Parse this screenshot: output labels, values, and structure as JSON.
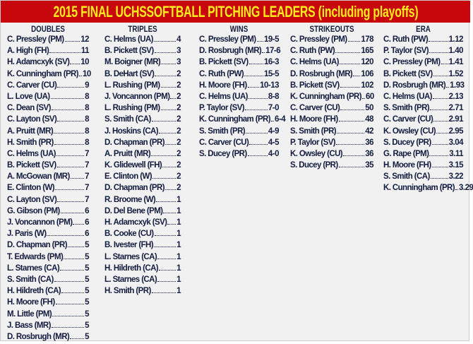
{
  "title": "2015 FINAL UCHSSOFTBALL PITCHING LEADERS (including playoffs)",
  "colors": {
    "banner": "#c8070c",
    "title_text": "#ffec1a",
    "body_text": "#131c3f",
    "background": "#f1f1f1"
  },
  "columns": [
    {
      "header": "DOUBLES",
      "rows": [
        [
          "C. Pressley (PM)",
          "12"
        ],
        [
          "A. High (FH)",
          "11"
        ],
        [
          "H. Adamcxyk (SV)",
          "10"
        ],
        [
          "K. Cunningham (PR)",
          "10"
        ],
        [
          "C. Carver (CU)",
          "9"
        ],
        [
          "L. Love (UA)",
          "8"
        ],
        [
          "C. Dean (SV)",
          "8"
        ],
        [
          "C. Layton (SV)",
          "8"
        ],
        [
          "A. Pruitt (MR)",
          "8"
        ],
        [
          "H. Smith (PR)",
          "8"
        ],
        [
          "C. Helms (UA)",
          "7"
        ],
        [
          "B. Pickett (SV)",
          "7"
        ],
        [
          "A. McGowan (MR)",
          "7"
        ],
        [
          "E. Clinton (W)",
          "7"
        ],
        [
          "C. Layton (SV)",
          "7"
        ],
        [
          "G. Gibson (PM)",
          "6"
        ],
        [
          "J. Voncannon (PM)",
          "6"
        ],
        [
          "J. Paris (W)",
          "6"
        ],
        [
          "D. Chapman (PR)",
          "5"
        ],
        [
          "T. Edwards (PM)",
          "5"
        ],
        [
          "L. Starnes (CA)",
          "5"
        ],
        [
          "S. Smith (CA)",
          "5"
        ],
        [
          "H. Hildreth (CA)",
          "5"
        ],
        [
          "H. Moore (FH)",
          "5"
        ],
        [
          "M. Little (PM)",
          "5"
        ],
        [
          "J. Bass (MR)",
          "5"
        ],
        [
          "D. Rosbrugh (MR)",
          "5"
        ]
      ]
    },
    {
      "header": "TRIPLES",
      "rows": [
        [
          "C. Helms (UA)",
          "4"
        ],
        [
          "B. Pickett (SV)",
          "3"
        ],
        [
          "M. Boigner (MR)",
          "3"
        ],
        [
          "B. DeHart (SV)",
          "2"
        ],
        [
          "L. Rushing (PM)",
          "2"
        ],
        [
          "J. Voncannon (PM)",
          "2"
        ],
        [
          "L. Rushing (PM)",
          "2"
        ],
        [
          "S. Smith (CA)",
          "2"
        ],
        [
          "J. Hoskins (CA)",
          "2"
        ],
        [
          "D. Chapman (PR)",
          "2"
        ],
        [
          "A. Pruitt (MR)",
          "2"
        ],
        [
          "K. Glidewell (FH)",
          "2"
        ],
        [
          "E. Clinton (W)",
          "2"
        ],
        [
          "D. Chapman (PR)",
          "2"
        ],
        [
          "R. Broome (W)",
          "1"
        ],
        [
          "D. Del Bene (PM)",
          "1"
        ],
        [
          "H. Adamcxyk (SV)",
          "1"
        ],
        [
          "B. Cooke (CU)",
          "1"
        ],
        [
          "B. Ivester (FH)",
          "1"
        ],
        [
          "L. Starnes (CA)",
          "1"
        ],
        [
          "H. Hildreth (CA)",
          "1"
        ],
        [
          "L. Starnes (CA)",
          "1"
        ],
        [
          "H. Smith (PR)",
          "1"
        ]
      ]
    },
    {
      "header": "WINS",
      "rows": [
        [
          "C. Pressley (PM)",
          "19-5"
        ],
        [
          "D. Rosbrugh (MR)",
          "17-6"
        ],
        [
          "B. Pickett (SV)",
          "16-3"
        ],
        [
          "C. Ruth (PW)",
          "15-5"
        ],
        [
          "H. Moore (FH)",
          "10-13"
        ],
        [
          "C. Helms (UA)",
          "8-8"
        ],
        [
          "P.  Taylor (SV)",
          "7-0"
        ],
        [
          "K. Cunningham (PR)",
          "6-4"
        ],
        [
          "S. Smith (PR)",
          "4-9"
        ],
        [
          "C. Carver (CU)",
          "4-5"
        ],
        [
          "S. Ducey (PR)",
          "4-0"
        ]
      ]
    },
    {
      "header": "STRIKEOUTS",
      "rows": [
        [
          "C. Pressley (PM)",
          "178"
        ],
        [
          "C. Ruth (PW)",
          "165"
        ],
        [
          "C. Helms (UA)",
          "120"
        ],
        [
          "D. Rosbrugh (MR)",
          "106"
        ],
        [
          "B. Pickett (SV)",
          "102"
        ],
        [
          "K. Cunningham (PR)",
          "60"
        ],
        [
          "C. Carver (CU)",
          "50"
        ],
        [
          "H. Moore (FH)",
          "48"
        ],
        [
          "S. Smith (PR)",
          "42"
        ],
        [
          "P.  Taylor (SV)",
          "36"
        ],
        [
          "K. Owsley (CU)",
          "36"
        ],
        [
          "S. Ducey (PR)",
          "35"
        ]
      ]
    },
    {
      "header": "ERA",
      "rows": [
        [
          "C. Ruth (PW)",
          "1.12"
        ],
        [
          "P.  Taylor (SV)",
          "1.40"
        ],
        [
          "C. Pressley (PM)",
          "1.41"
        ],
        [
          "B. Pickett (SV)",
          "1.52"
        ],
        [
          "D. Rosbrugh (MR)",
          "1.93"
        ],
        [
          "C. Helms (UA)",
          "2.13"
        ],
        [
          "S. Smith (PR)",
          "2.71"
        ],
        [
          "C. Carver (CU)",
          "2.91"
        ],
        [
          "K. Owsley (CU)",
          "2.95"
        ],
        [
          "S. Ducey (PR)",
          "3.04"
        ],
        [
          "G. Rape (PM)",
          "3.11"
        ],
        [
          "H. Moore (FH)",
          "3.15"
        ],
        [
          "S. Smith (CA)",
          "3.22"
        ],
        [
          "K. Cunningham (PR)",
          "3.29"
        ]
      ]
    }
  ]
}
